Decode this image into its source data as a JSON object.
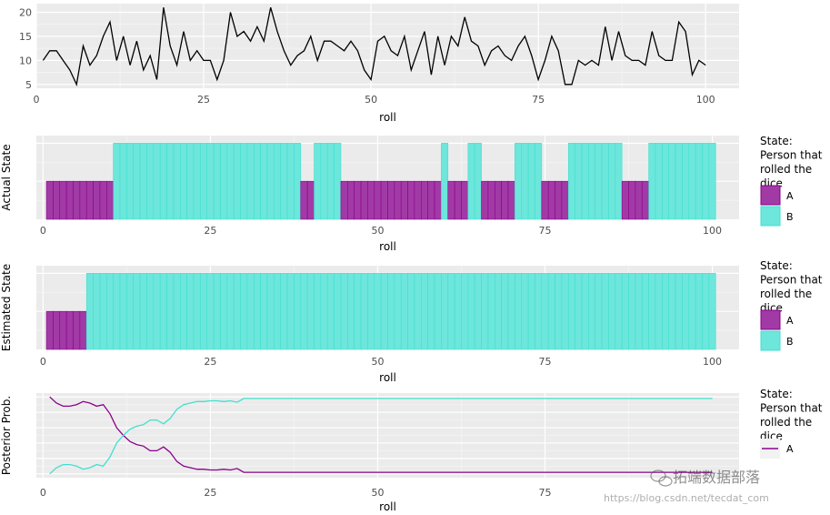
{
  "legend": {
    "title_lines": [
      "State:",
      "Person that",
      "rolled the",
      "dice"
    ],
    "items": [
      {
        "key": "A",
        "label": "A",
        "fill": "#a23aa6",
        "stroke": "#8b008b"
      },
      {
        "key": "B",
        "label": "B",
        "fill": "#6de6db",
        "stroke": "#40e0d0"
      }
    ]
  },
  "watermark": {
    "brand": "拓端数据部落",
    "url": "https://blog.csdn.net/tecdat_com"
  },
  "colors": {
    "panel": "#ebebeb",
    "grid_major": "#ffffff",
    "grid_minor": "#f5f5f5",
    "A": "#a23aa6",
    "B": "#6de6db",
    "line": "#000000"
  },
  "chart_data": [
    {
      "type": "line",
      "xlabel": "roll",
      "ylabel": "",
      "xlim": [
        0,
        105
      ],
      "ylim": [
        4.2,
        21.8
      ],
      "xticks": [
        0,
        25,
        50,
        75,
        100
      ],
      "yticks": [
        5,
        10,
        15,
        20
      ],
      "x": [
        1,
        2,
        3,
        4,
        5,
        6,
        7,
        8,
        9,
        10,
        11,
        12,
        13,
        14,
        15,
        16,
        17,
        18,
        19,
        20,
        21,
        22,
        23,
        24,
        25,
        26,
        27,
        28,
        29,
        30,
        31,
        32,
        33,
        34,
        35,
        36,
        37,
        38,
        39,
        40,
        41,
        42,
        43,
        44,
        45,
        46,
        47,
        48,
        49,
        50,
        51,
        52,
        53,
        54,
        55,
        56,
        57,
        58,
        59,
        60,
        61,
        62,
        63,
        64,
        65,
        66,
        67,
        68,
        69,
        70,
        71,
        72,
        73,
        74,
        75,
        76,
        77,
        78,
        79,
        80,
        81,
        82,
        83,
        84,
        85,
        86,
        87,
        88,
        89,
        90,
        91,
        92,
        93,
        94,
        95,
        96,
        97,
        98,
        99,
        100
      ],
      "series": [
        {
          "values": [
            10,
            12,
            12,
            10,
            8,
            5,
            13,
            9,
            11,
            15,
            18,
            10,
            15,
            9,
            14,
            8,
            11,
            6,
            21,
            13,
            9,
            16,
            10,
            12,
            10,
            10,
            6,
            10,
            20,
            15,
            16,
            14,
            17,
            14,
            21,
            16,
            12,
            9,
            11,
            12,
            15,
            10,
            14,
            14,
            13,
            12,
            14,
            12,
            8,
            6,
            14,
            15,
            12,
            11,
            15,
            8,
            12,
            16,
            7,
            15,
            9,
            15,
            13,
            19,
            14,
            13,
            9,
            12,
            13,
            11,
            10,
            13,
            15,
            11,
            6,
            10,
            15,
            12,
            5,
            5,
            10,
            9,
            10,
            9,
            17,
            10,
            16,
            11,
            10,
            10,
            9,
            16,
            11,
            10,
            10,
            18,
            16,
            7,
            10,
            9
          ]
        }
      ]
    },
    {
      "type": "bar",
      "xlabel": "roll",
      "ylabel": "Actual State",
      "xlim": [
        -1,
        104
      ],
      "xticks": [
        0,
        25,
        50,
        75,
        100
      ],
      "bar_heights": {
        "A": 1,
        "B": 2
      },
      "ylim": [
        0,
        2.2
      ],
      "x": [
        1,
        2,
        3,
        4,
        5,
        6,
        7,
        8,
        9,
        10,
        11,
        12,
        13,
        14,
        15,
        16,
        17,
        18,
        19,
        20,
        21,
        22,
        23,
        24,
        25,
        26,
        27,
        28,
        29,
        30,
        31,
        32,
        33,
        34,
        35,
        36,
        37,
        38,
        39,
        40,
        41,
        42,
        43,
        44,
        45,
        46,
        47,
        48,
        49,
        50,
        51,
        52,
        53,
        54,
        55,
        56,
        57,
        58,
        59,
        60,
        61,
        62,
        63,
        64,
        65,
        66,
        67,
        68,
        69,
        70,
        71,
        72,
        73,
        74,
        75,
        76,
        77,
        78,
        79,
        80,
        81,
        82,
        83,
        84,
        85,
        86,
        87,
        88,
        89,
        90,
        91,
        92,
        93,
        94,
        95,
        96,
        97,
        98,
        99,
        100
      ],
      "states": [
        "A",
        "A",
        "A",
        "A",
        "A",
        "A",
        "A",
        "A",
        "A",
        "A",
        "B",
        "B",
        "B",
        "B",
        "B",
        "B",
        "B",
        "B",
        "B",
        "B",
        "B",
        "B",
        "B",
        "B",
        "B",
        "B",
        "B",
        "B",
        "B",
        "B",
        "B",
        "B",
        "B",
        "B",
        "B",
        "B",
        "B",
        "B",
        "A",
        "A",
        "B",
        "B",
        "B",
        "B",
        "A",
        "A",
        "A",
        "A",
        "A",
        "A",
        "A",
        "A",
        "A",
        "A",
        "A",
        "A",
        "A",
        "A",
        "A",
        "B",
        "A",
        "A",
        "A",
        "B",
        "B",
        "A",
        "A",
        "A",
        "A",
        "A",
        "B",
        "B",
        "B",
        "B",
        "A",
        "A",
        "A",
        "A",
        "B",
        "B",
        "B",
        "B",
        "B",
        "B",
        "B",
        "B",
        "A",
        "A",
        "A",
        "A",
        "B",
        "B",
        "B",
        "B",
        "B",
        "B",
        "B",
        "B",
        "B",
        "B"
      ]
    },
    {
      "type": "bar",
      "xlabel": "roll",
      "ylabel": "Estimated State",
      "xlim": [
        -1,
        104
      ],
      "xticks": [
        0,
        25,
        50,
        75,
        100
      ],
      "bar_heights": {
        "A": 1,
        "B": 2
      },
      "ylim": [
        0,
        2.2
      ],
      "x": [
        1,
        2,
        3,
        4,
        5,
        6,
        7,
        8,
        9,
        10,
        11,
        12,
        13,
        14,
        15,
        16,
        17,
        18,
        19,
        20,
        21,
        22,
        23,
        24,
        25,
        26,
        27,
        28,
        29,
        30,
        31,
        32,
        33,
        34,
        35,
        36,
        37,
        38,
        39,
        40,
        41,
        42,
        43,
        44,
        45,
        46,
        47,
        48,
        49,
        50,
        51,
        52,
        53,
        54,
        55,
        56,
        57,
        58,
        59,
        60,
        61,
        62,
        63,
        64,
        65,
        66,
        67,
        68,
        69,
        70,
        71,
        72,
        73,
        74,
        75,
        76,
        77,
        78,
        79,
        80,
        81,
        82,
        83,
        84,
        85,
        86,
        87,
        88,
        89,
        90,
        91,
        92,
        93,
        94,
        95,
        96,
        97,
        98,
        99,
        100
      ],
      "states": [
        "A",
        "A",
        "A",
        "A",
        "A",
        "A",
        "B",
        "B",
        "B",
        "B",
        "B",
        "B",
        "B",
        "B",
        "B",
        "B",
        "B",
        "B",
        "B",
        "B",
        "B",
        "B",
        "B",
        "B",
        "B",
        "B",
        "B",
        "B",
        "B",
        "B",
        "B",
        "B",
        "B",
        "B",
        "B",
        "B",
        "B",
        "B",
        "B",
        "B",
        "B",
        "B",
        "B",
        "B",
        "B",
        "B",
        "B",
        "B",
        "B",
        "B",
        "B",
        "B",
        "B",
        "B",
        "B",
        "B",
        "B",
        "B",
        "B",
        "B",
        "B",
        "B",
        "B",
        "B",
        "B",
        "B",
        "B",
        "B",
        "B",
        "B",
        "B",
        "B",
        "B",
        "B",
        "B",
        "B",
        "B",
        "B",
        "B",
        "B",
        "B",
        "B",
        "B",
        "B",
        "B",
        "B",
        "B",
        "B",
        "B",
        "B",
        "B",
        "B",
        "B",
        "B",
        "B",
        "B",
        "B",
        "B",
        "B",
        "B"
      ]
    },
    {
      "type": "line",
      "xlabel": "roll",
      "ylabel": "Posterior Prob.",
      "xlim": [
        -1,
        104
      ],
      "xticks": [
        0,
        25,
        50,
        75
      ],
      "ylim": [
        -0.05,
        1.05
      ],
      "x": [
        1,
        2,
        3,
        4,
        5,
        6,
        7,
        8,
        9,
        10,
        11,
        12,
        13,
        14,
        15,
        16,
        17,
        18,
        19,
        20,
        21,
        22,
        23,
        24,
        25,
        26,
        27,
        28,
        29,
        30,
        31,
        32,
        33,
        34,
        35,
        36,
        37,
        38,
        39,
        40,
        41,
        42,
        43,
        44,
        45,
        46,
        47,
        48,
        49,
        50,
        51,
        52,
        53,
        54,
        55,
        56,
        57,
        58,
        59,
        60,
        61,
        62,
        63,
        64,
        65,
        66,
        67,
        68,
        69,
        70,
        71,
        72,
        73,
        74,
        75,
        76,
        77,
        78,
        79,
        80,
        81,
        82,
        83,
        84,
        85,
        86,
        87,
        88,
        89,
        90,
        91,
        92,
        93,
        94,
        95,
        96,
        97,
        98,
        99,
        100
      ],
      "series": [
        {
          "key": "A",
          "values": [
            1.0,
            0.92,
            0.88,
            0.88,
            0.9,
            0.94,
            0.92,
            0.88,
            0.9,
            0.78,
            0.6,
            0.5,
            0.42,
            0.38,
            0.36,
            0.3,
            0.3,
            0.35,
            0.28,
            0.16,
            0.1,
            0.08,
            0.06,
            0.06,
            0.05,
            0.05,
            0.06,
            0.05,
            0.07,
            0.02,
            0.02,
            0.02,
            0.02,
            0.02,
            0.02,
            0.02,
            0.02,
            0.02,
            0.02,
            0.02,
            0.02,
            0.02,
            0.02,
            0.02,
            0.02,
            0.02,
            0.02,
            0.02,
            0.02,
            0.02,
            0.02,
            0.02,
            0.02,
            0.02,
            0.02,
            0.02,
            0.02,
            0.02,
            0.02,
            0.02,
            0.02,
            0.02,
            0.02,
            0.02,
            0.02,
            0.02,
            0.02,
            0.02,
            0.02,
            0.02,
            0.02,
            0.02,
            0.02,
            0.02,
            0.02,
            0.02,
            0.02,
            0.02,
            0.02,
            0.02,
            0.02,
            0.02,
            0.02,
            0.02,
            0.02,
            0.02,
            0.02,
            0.02,
            0.02,
            0.02,
            0.02,
            0.02,
            0.02,
            0.02,
            0.02,
            0.02,
            0.02,
            0.02,
            0.02,
            0.02
          ]
        },
        {
          "key": "B",
          "values": [
            0.0,
            0.08,
            0.12,
            0.12,
            0.1,
            0.06,
            0.08,
            0.12,
            0.1,
            0.22,
            0.4,
            0.5,
            0.58,
            0.62,
            0.64,
            0.7,
            0.7,
            0.65,
            0.72,
            0.84,
            0.9,
            0.92,
            0.94,
            0.94,
            0.95,
            0.95,
            0.94,
            0.95,
            0.93,
            0.98,
            0.98,
            0.98,
            0.98,
            0.98,
            0.98,
            0.98,
            0.98,
            0.98,
            0.98,
            0.98,
            0.98,
            0.98,
            0.98,
            0.98,
            0.98,
            0.98,
            0.98,
            0.98,
            0.98,
            0.98,
            0.98,
            0.98,
            0.98,
            0.98,
            0.98,
            0.98,
            0.98,
            0.98,
            0.98,
            0.98,
            0.98,
            0.98,
            0.98,
            0.98,
            0.98,
            0.98,
            0.98,
            0.98,
            0.98,
            0.98,
            0.98,
            0.98,
            0.98,
            0.98,
            0.98,
            0.98,
            0.98,
            0.98,
            0.98,
            0.98,
            0.98,
            0.98,
            0.98,
            0.98,
            0.98,
            0.98,
            0.98,
            0.98,
            0.98,
            0.98,
            0.98,
            0.98,
            0.98,
            0.98,
            0.98,
            0.98,
            0.98,
            0.98,
            0.98,
            0.98
          ]
        }
      ]
    }
  ]
}
